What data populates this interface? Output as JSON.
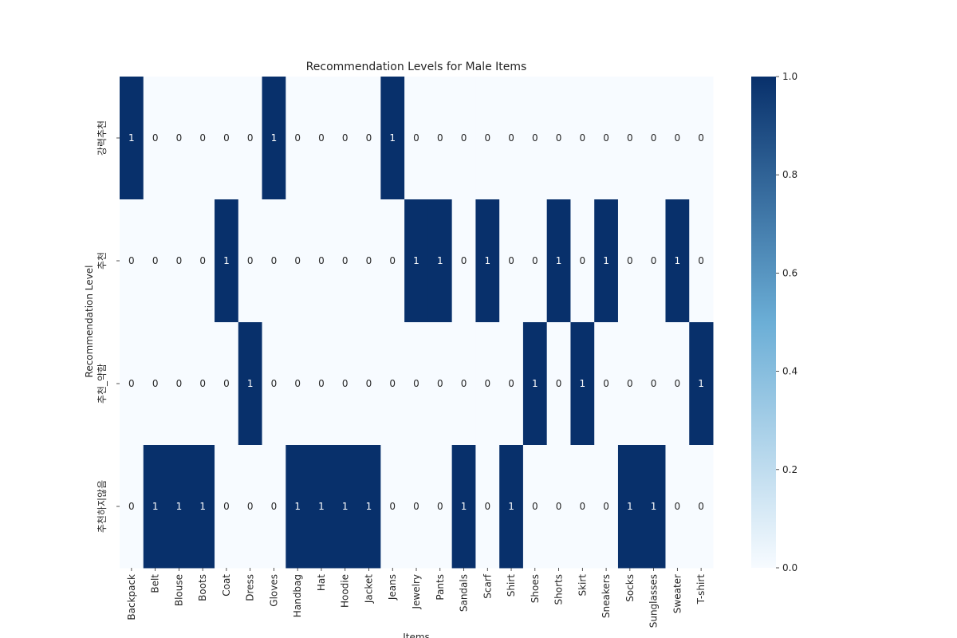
{
  "chart_data": {
    "type": "heatmap",
    "title": "Recommendation Levels for Male Items",
    "xlabel": "Items",
    "ylabel": "Recommendation Level",
    "x_categories": [
      "Backpack",
      "Belt",
      "Blouse",
      "Boots",
      "Coat",
      "Dress",
      "Gloves",
      "Handbag",
      "Hat",
      "Hoodie",
      "Jacket",
      "Jeans",
      "Jewelry",
      "Pants",
      "Sandals",
      "Scarf",
      "Shirt",
      "Shoes",
      "Shorts",
      "Skirt",
      "Sneakers",
      "Socks",
      "Sunglasses",
      "Sweater",
      "T-shirt"
    ],
    "y_categories": [
      "강력추천",
      "추천",
      "추천_약함",
      "추천하지않음"
    ],
    "values": [
      [
        1,
        0,
        0,
        0,
        0,
        0,
        1,
        0,
        0,
        0,
        0,
        1,
        0,
        0,
        0,
        0,
        0,
        0,
        0,
        0,
        0,
        0,
        0,
        0,
        0
      ],
      [
        0,
        0,
        0,
        0,
        1,
        0,
        0,
        0,
        0,
        0,
        0,
        0,
        1,
        1,
        0,
        1,
        0,
        0,
        1,
        0,
        1,
        0,
        0,
        1,
        0
      ],
      [
        0,
        0,
        0,
        0,
        0,
        1,
        0,
        0,
        0,
        0,
        0,
        0,
        0,
        0,
        0,
        0,
        0,
        1,
        0,
        1,
        0,
        0,
        0,
        0,
        1
      ],
      [
        0,
        1,
        1,
        1,
        0,
        0,
        0,
        1,
        1,
        1,
        1,
        0,
        0,
        0,
        1,
        0,
        1,
        0,
        0,
        0,
        0,
        1,
        1,
        0,
        0
      ]
    ],
    "annotate": true,
    "colormap": "Blues",
    "color_low": "#f7fbff",
    "color_high": "#08306b",
    "vmin": 0,
    "vmax": 1,
    "colorbar_ticks": [
      "0.0",
      "0.2",
      "0.4",
      "0.6",
      "0.8",
      "1.0"
    ],
    "colorbar_tick_values": [
      0,
      0.2,
      0.4,
      0.6,
      0.8,
      1.0
    ]
  }
}
